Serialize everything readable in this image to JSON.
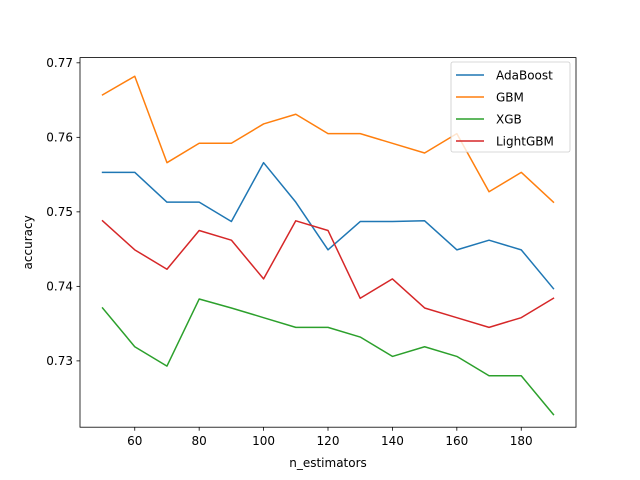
{
  "chart_data": {
    "type": "line",
    "xlabel": "n_estimators",
    "ylabel": "accuracy",
    "x": [
      50,
      60,
      70,
      80,
      90,
      100,
      110,
      120,
      130,
      140,
      150,
      160,
      170,
      180,
      190
    ],
    "xlim": [
      43,
      197
    ],
    "ylim": [
      0.7211,
      0.7707
    ],
    "xticks": [
      60,
      80,
      100,
      120,
      140,
      160,
      180
    ],
    "yticks": [
      0.73,
      0.74,
      0.75,
      0.76,
      0.77
    ],
    "xtick_labels": [
      "60",
      "80",
      "100",
      "120",
      "140",
      "160",
      "180"
    ],
    "ytick_labels": [
      "0.73",
      "0.74",
      "0.75",
      "0.76",
      "0.77"
    ],
    "grid": false,
    "legend_position": "top-right",
    "series": [
      {
        "name": "AdaBoost",
        "color": "#1f77b4",
        "values": [
          0.7553,
          0.7553,
          0.7513,
          0.7513,
          0.7487,
          0.7566,
          0.7513,
          0.7449,
          0.7487,
          0.7487,
          0.7488,
          0.7449,
          0.7462,
          0.7449,
          0.7397
        ]
      },
      {
        "name": "GBM",
        "color": "#ff7f0e",
        "values": [
          0.7657,
          0.7682,
          0.7566,
          0.7592,
          0.7592,
          0.7618,
          0.7631,
          0.7605,
          0.7605,
          0.7592,
          0.7579,
          0.7605,
          0.7527,
          0.7553,
          0.7513
        ]
      },
      {
        "name": "XGB",
        "color": "#2ca02c",
        "values": [
          0.7371,
          0.7319,
          0.7293,
          0.7383,
          0.7371,
          0.7358,
          0.7345,
          0.7345,
          0.7332,
          0.7306,
          0.7319,
          0.7306,
          0.728,
          0.728,
          0.7228
        ]
      },
      {
        "name": "LightGBM",
        "color": "#d62728",
        "values": [
          0.7488,
          0.7449,
          0.7423,
          0.7475,
          0.7462,
          0.741,
          0.7488,
          0.7475,
          0.7384,
          0.741,
          0.7371,
          0.7358,
          0.7345,
          0.7358,
          0.7384
        ]
      }
    ]
  }
}
